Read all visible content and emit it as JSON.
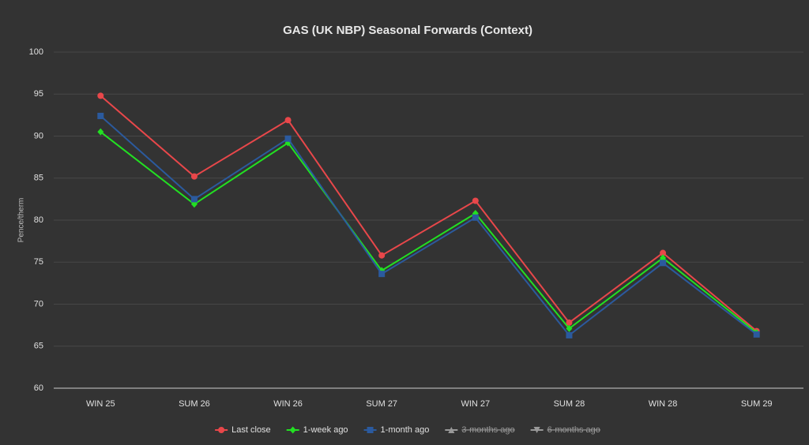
{
  "chart_data": {
    "type": "line",
    "title": "GAS (UK NBP) Seasonal Forwards (Context)",
    "y_label": "Pence/therm",
    "categories": [
      "WIN 25",
      "SUM 26",
      "WIN 26",
      "SUM 27",
      "WIN 27",
      "SUM 28",
      "WIN 28",
      "SUM 29"
    ],
    "series": [
      {
        "name": "Last close",
        "color": "#e8474a",
        "marker": "circle",
        "visible": true,
        "values": [
          94.8,
          85.2,
          91.9,
          75.8,
          82.3,
          67.8,
          76.1,
          66.8
        ]
      },
      {
        "name": "1-week ago",
        "color": "#22e022",
        "marker": "diamond",
        "visible": true,
        "values": [
          90.5,
          81.9,
          89.2,
          74.0,
          80.8,
          67.1,
          75.5,
          66.6
        ]
      },
      {
        "name": "1-month ago",
        "color": "#2b5a9e",
        "marker": "square",
        "visible": true,
        "values": [
          92.4,
          82.5,
          89.7,
          73.6,
          80.3,
          66.3,
          74.9,
          66.4
        ]
      },
      {
        "name": "3-months ago",
        "color": "#a0a0a0",
        "marker": "triangle",
        "visible": false,
        "values": [
          null,
          null,
          null,
          null,
          null,
          null,
          null,
          null
        ]
      },
      {
        "name": "6-months ago",
        "color": "#a0a0a0",
        "marker": "triangle-down",
        "visible": false,
        "values": [
          null,
          null,
          null,
          null,
          null,
          null,
          null,
          null
        ]
      }
    ],
    "ylim": [
      60,
      100
    ],
    "yticks": [
      60,
      65,
      70,
      75,
      80,
      85,
      90,
      95,
      100
    ],
    "grid": true,
    "legend": "bottom"
  }
}
